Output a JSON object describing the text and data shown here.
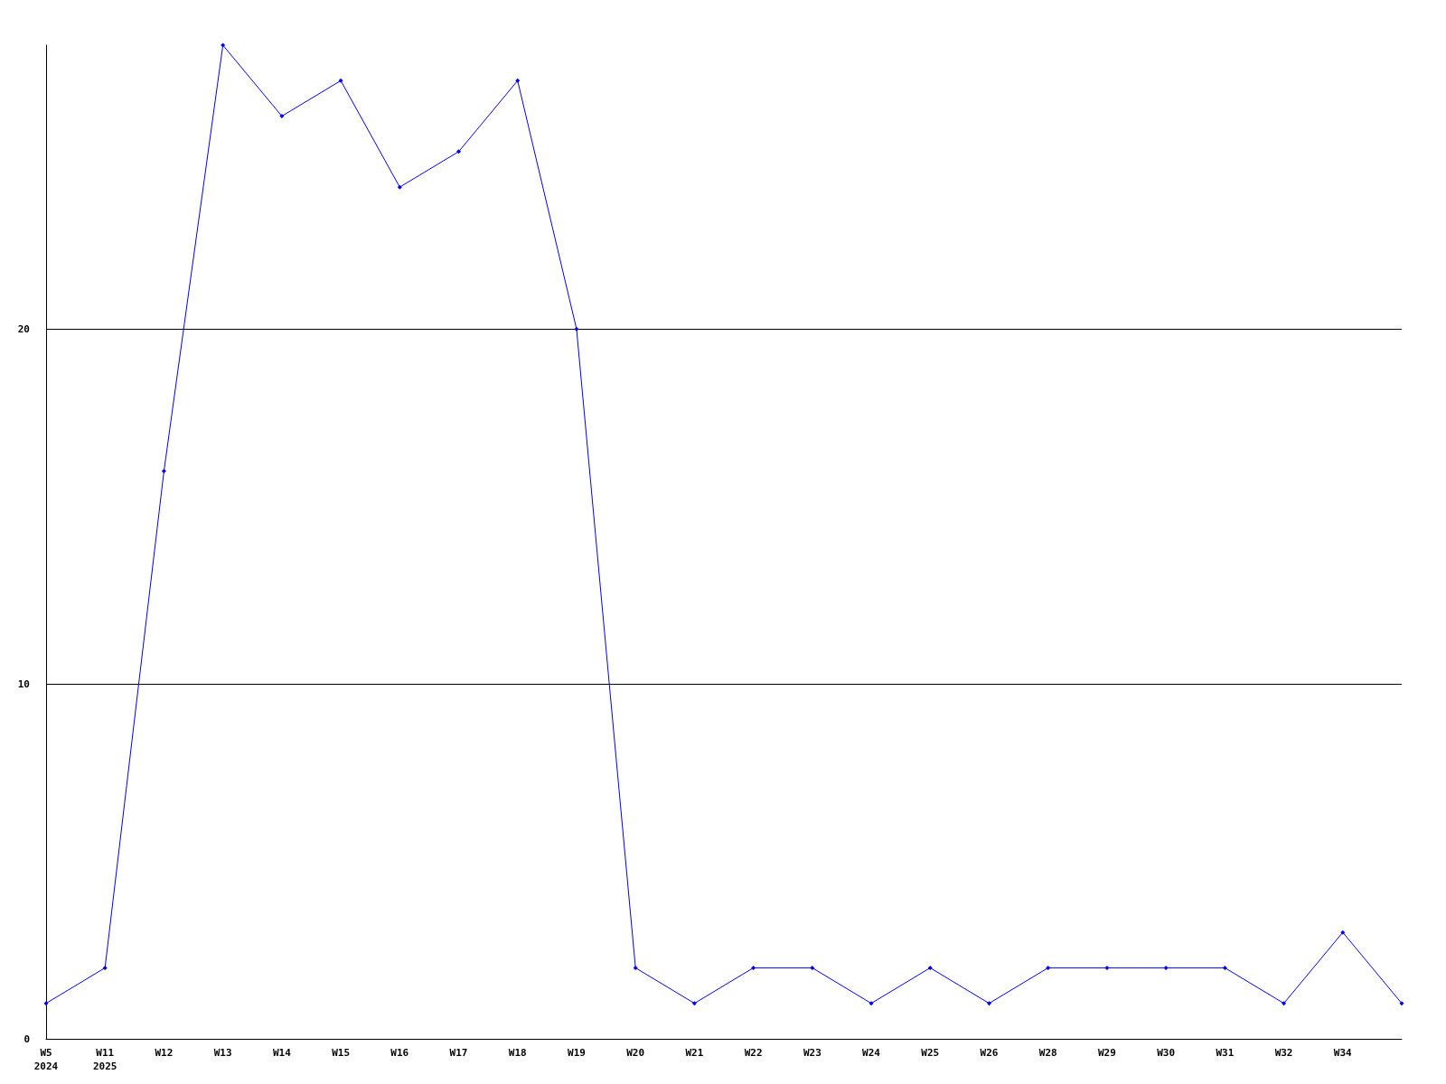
{
  "chart_data": {
    "type": "line",
    "categories": [
      "W5\n2024",
      "W11\n2025",
      "W12",
      "W13",
      "W14",
      "W15",
      "W16",
      "W17",
      "W18",
      "W19",
      "W20",
      "W21",
      "W22",
      "W23",
      "W24",
      "W25",
      "W26",
      "W28",
      "W29",
      "W30",
      "W31",
      "W32",
      "W34",
      null
    ],
    "series": [
      {
        "color": "#0000ff",
        "values": [
          1,
          2,
          16,
          28,
          26,
          27,
          24,
          25,
          27,
          20,
          2,
          1,
          2,
          2,
          1,
          2,
          1,
          2,
          2,
          2,
          2,
          1,
          3,
          1
        ]
      }
    ],
    "ylim": [
      0,
      28
    ],
    "yticks": [
      0,
      10,
      20
    ],
    "grid": "y",
    "marker": "diamond",
    "line_style": "solid"
  }
}
